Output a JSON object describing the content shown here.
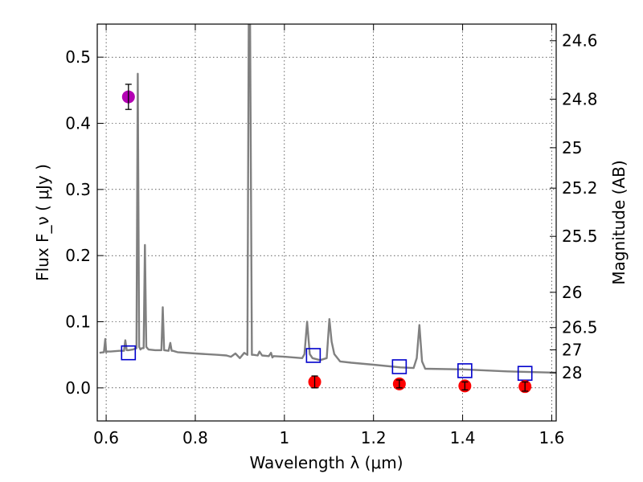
{
  "chart_data": {
    "type": "scatter",
    "title": "",
    "xlabel": "Wavelength  λ (μm)",
    "ylabel": "Flux  F_ν  ( μJy )",
    "ylabel_right": "Magnitude (AB)",
    "xlim": [
      0.58,
      1.61
    ],
    "ylim": [
      -0.05,
      0.55
    ],
    "grid": true,
    "x_ticks": [
      0.6,
      0.8,
      1.0,
      1.2,
      1.4,
      1.6
    ],
    "x_tick_labels": [
      "0.6",
      "0.8",
      "1",
      "1.2",
      "1.4",
      "1.6"
    ],
    "y_ticks": [
      0.0,
      0.1,
      0.2,
      0.3,
      0.4,
      0.5
    ],
    "y_tick_labels": [
      "0.0",
      "0.1",
      "0.2",
      "0.3",
      "0.4",
      "0.5"
    ],
    "right_axis_ticks": [
      {
        "label": "24.6",
        "flux": 0.5248
      },
      {
        "label": "24.8",
        "flux": 0.4365
      },
      {
        "label": "25",
        "flux": 0.3631
      },
      {
        "label": "25.2",
        "flux": 0.302
      },
      {
        "label": "25.5",
        "flux": 0.2291
      },
      {
        "label": "26",
        "flux": 0.1445
      },
      {
        "label": "26.5",
        "flux": 0.0912
      },
      {
        "label": "27",
        "flux": 0.0575
      },
      {
        "label": "28",
        "flux": 0.0229
      }
    ],
    "series": [
      {
        "name": "model spectrum",
        "kind": "line",
        "color": "#808080",
        "x": [
          0.585,
          0.595,
          0.598,
          0.6,
          0.602,
          0.61,
          0.63,
          0.64,
          0.643,
          0.646,
          0.65,
          0.66,
          0.668,
          0.671,
          0.674,
          0.677,
          0.68,
          0.684,
          0.687,
          0.69,
          0.695,
          0.71,
          0.724,
          0.727,
          0.73,
          0.74,
          0.744,
          0.747,
          0.75,
          0.76,
          0.8,
          0.85,
          0.87,
          0.88,
          0.89,
          0.9,
          0.91,
          0.917,
          0.92,
          0.923,
          0.927,
          0.931,
          0.94,
          0.944,
          0.95,
          0.965,
          0.97,
          0.973,
          0.976,
          1.0,
          1.04,
          1.045,
          1.051,
          1.057,
          1.063,
          1.08,
          1.095,
          1.101,
          1.106,
          1.112,
          1.125,
          1.15,
          1.2,
          1.26,
          1.29,
          1.297,
          1.303,
          1.309,
          1.316,
          1.4,
          1.5,
          1.61
        ],
        "y": [
          0.053,
          0.054,
          0.074,
          0.054,
          0.055,
          0.055,
          0.056,
          0.056,
          0.072,
          0.057,
          0.057,
          0.058,
          0.06,
          0.475,
          0.062,
          0.058,
          0.06,
          0.06,
          0.216,
          0.062,
          0.058,
          0.057,
          0.057,
          0.122,
          0.057,
          0.056,
          0.068,
          0.056,
          0.056,
          0.054,
          0.052,
          0.05,
          0.049,
          0.047,
          0.052,
          0.045,
          0.053,
          0.05,
          0.56,
          0.56,
          0.05,
          0.05,
          0.049,
          0.055,
          0.049,
          0.048,
          0.053,
          0.046,
          0.048,
          0.047,
          0.045,
          0.051,
          0.1,
          0.051,
          0.045,
          0.042,
          0.045,
          0.104,
          0.07,
          0.051,
          0.04,
          0.038,
          0.035,
          0.031,
          0.03,
          0.045,
          0.095,
          0.04,
          0.029,
          0.028,
          0.025,
          0.023
        ]
      },
      {
        "name": "model photometry",
        "kind": "open-square",
        "color": "#0000cc",
        "x": [
          0.65,
          1.065,
          1.258,
          1.405,
          1.54
        ],
        "y": [
          0.053,
          0.049,
          0.032,
          0.026,
          0.022
        ]
      },
      {
        "name": "detection",
        "kind": "filled-circle",
        "color": "#b300b3",
        "x": [
          0.65
        ],
        "y": [
          0.44
        ],
        "err": [
          0.019
        ]
      },
      {
        "name": "photometry",
        "kind": "filled-circle",
        "color": "#ff0000",
        "x": [
          1.068,
          1.258,
          1.405,
          1.54
        ],
        "y": [
          0.009,
          0.006,
          0.003,
          0.002
        ],
        "err": [
          0.009,
          0.006,
          0.006,
          0.007
        ]
      }
    ]
  }
}
